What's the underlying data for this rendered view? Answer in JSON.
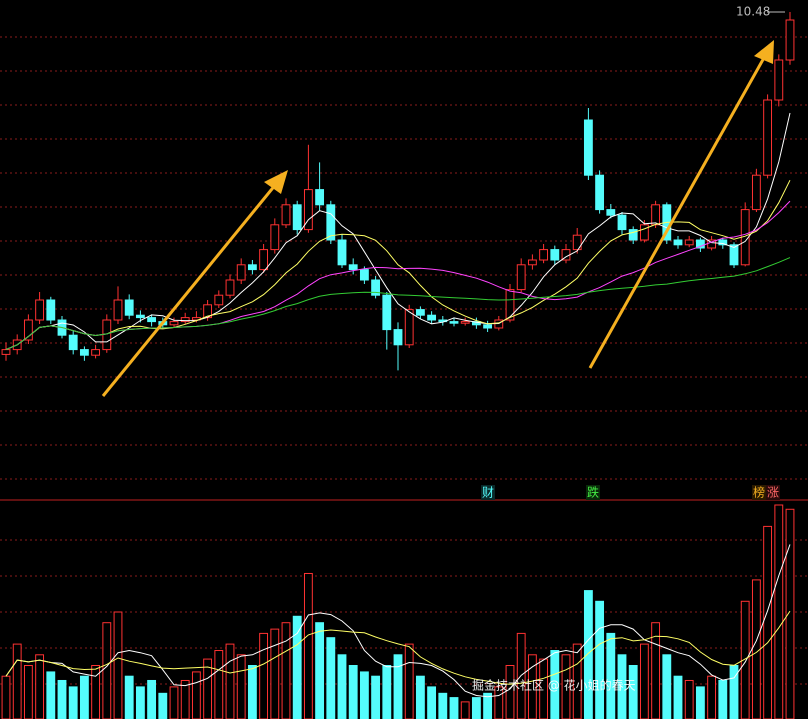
{
  "chart_data": {
    "type": "candlestick",
    "candles": [
      [
        6.2,
        6.35,
        6.12,
        6.26
      ],
      [
        6.26,
        6.45,
        6.2,
        6.38
      ],
      [
        6.38,
        6.7,
        6.33,
        6.63
      ],
      [
        6.63,
        6.98,
        6.58,
        6.88
      ],
      [
        6.88,
        6.92,
        6.58,
        6.63
      ],
      [
        6.63,
        6.68,
        6.4,
        6.44
      ],
      [
        6.44,
        6.5,
        6.2,
        6.26
      ],
      [
        6.26,
        6.3,
        6.12,
        6.19
      ],
      [
        6.19,
        6.32,
        6.15,
        6.26
      ],
      [
        6.26,
        6.7,
        6.22,
        6.63
      ],
      [
        6.63,
        7.05,
        6.58,
        6.88
      ],
      [
        6.88,
        6.95,
        6.64,
        6.69
      ],
      [
        6.69,
        6.75,
        6.6,
        6.66
      ],
      [
        6.66,
        6.7,
        6.55,
        6.61
      ],
      [
        6.61,
        6.66,
        6.52,
        6.57
      ],
      [
        6.57,
        6.66,
        6.53,
        6.61
      ],
      [
        6.61,
        6.72,
        6.58,
        6.66
      ],
      [
        6.63,
        6.74,
        6.6,
        6.66
      ],
      [
        6.66,
        6.88,
        6.62,
        6.82
      ],
      [
        6.82,
        7.0,
        6.78,
        6.94
      ],
      [
        6.94,
        7.2,
        6.9,
        7.13
      ],
      [
        7.13,
        7.4,
        7.08,
        7.32
      ],
      [
        7.32,
        7.38,
        7.2,
        7.26
      ],
      [
        7.26,
        7.58,
        7.22,
        7.51
      ],
      [
        7.51,
        7.9,
        7.46,
        7.82
      ],
      [
        7.82,
        8.15,
        7.78,
        8.07
      ],
      [
        8.07,
        8.12,
        7.7,
        7.76
      ],
      [
        7.76,
        8.82,
        7.72,
        8.26
      ],
      [
        8.26,
        8.6,
        8.0,
        8.07
      ],
      [
        8.07,
        8.12,
        7.58,
        7.63
      ],
      [
        7.63,
        7.7,
        7.28,
        7.32
      ],
      [
        7.32,
        7.4,
        7.2,
        7.26
      ],
      [
        7.26,
        7.3,
        7.08,
        7.13
      ],
      [
        7.13,
        7.18,
        6.9,
        6.94
      ],
      [
        6.94,
        6.98,
        6.26,
        6.51
      ],
      [
        6.51,
        6.6,
        6.0,
        6.32
      ],
      [
        6.32,
        6.82,
        6.28,
        6.76
      ],
      [
        6.76,
        6.8,
        6.64,
        6.69
      ],
      [
        6.69,
        6.74,
        6.58,
        6.63
      ],
      [
        6.63,
        6.68,
        6.56,
        6.61
      ],
      [
        6.61,
        6.66,
        6.55,
        6.59
      ],
      [
        6.59,
        6.66,
        6.56,
        6.61
      ],
      [
        6.61,
        6.66,
        6.52,
        6.57
      ],
      [
        6.57,
        6.62,
        6.48,
        6.53
      ],
      [
        6.53,
        6.68,
        6.5,
        6.63
      ],
      [
        6.63,
        7.08,
        6.6,
        7.01
      ],
      [
        7.01,
        7.4,
        6.98,
        7.32
      ],
      [
        7.32,
        7.45,
        7.26,
        7.38
      ],
      [
        7.38,
        7.58,
        7.34,
        7.51
      ],
      [
        7.51,
        7.56,
        7.32,
        7.38
      ],
      [
        7.38,
        7.58,
        7.34,
        7.51
      ],
      [
        7.51,
        7.78,
        7.46,
        7.69
      ],
      [
        9.13,
        9.28,
        8.38,
        8.44
      ],
      [
        8.44,
        8.5,
        7.96,
        8.01
      ],
      [
        8.01,
        8.08,
        7.9,
        7.94
      ],
      [
        7.94,
        7.98,
        7.7,
        7.76
      ],
      [
        7.76,
        7.8,
        7.58,
        7.63
      ],
      [
        7.63,
        7.88,
        7.6,
        7.82
      ],
      [
        7.82,
        8.12,
        7.78,
        8.07
      ],
      [
        8.07,
        8.1,
        7.58,
        7.63
      ],
      [
        7.63,
        7.68,
        7.52,
        7.57
      ],
      [
        7.57,
        7.68,
        7.54,
        7.63
      ],
      [
        7.63,
        7.66,
        7.48,
        7.53
      ],
      [
        7.53,
        7.68,
        7.5,
        7.63
      ],
      [
        7.63,
        7.66,
        7.52,
        7.57
      ],
      [
        7.57,
        7.6,
        7.28,
        7.32
      ],
      [
        7.32,
        8.1,
        7.3,
        8.01
      ],
      [
        8.01,
        8.52,
        7.98,
        8.44
      ],
      [
        8.44,
        9.45,
        8.4,
        9.38
      ],
      [
        9.38,
        9.95,
        9.3,
        9.88
      ],
      [
        9.88,
        10.48,
        9.82,
        10.38
      ]
    ],
    "volumes": [
      20,
      35,
      25,
      30,
      22,
      18,
      15,
      20,
      25,
      45,
      50,
      20,
      15,
      18,
      12,
      15,
      18,
      22,
      28,
      32,
      35,
      30,
      25,
      40,
      42,
      45,
      48,
      68,
      45,
      38,
      30,
      25,
      22,
      20,
      25,
      30,
      35,
      20,
      15,
      12,
      10,
      8,
      10,
      12,
      15,
      25,
      40,
      30,
      28,
      32,
      30,
      35,
      60,
      55,
      40,
      30,
      25,
      35,
      45,
      30,
      20,
      18,
      15,
      20,
      18,
      25,
      55,
      65,
      90,
      100,
      98
    ],
    "ylim": [
      4.38,
      10.63
    ],
    "vol_ylim": [
      0,
      100
    ],
    "up_color": "#ff3232",
    "down_color": "#54fcfc",
    "ma": [
      {
        "period": 5,
        "color": "#ffffff"
      },
      {
        "period": 10,
        "color": "#ffff66"
      },
      {
        "period": 20,
        "color": "#ff44ff"
      },
      {
        "period": 60,
        "color": "#33cc33"
      }
    ],
    "vol_ma": [
      {
        "period": 5,
        "color": "#ffffff"
      },
      {
        "period": 10,
        "color": "#ffff66"
      }
    ],
    "signals": [
      "财",
      "跌",
      "榜",
      "涨"
    ],
    "watermark": "掘金技术社区 @ 花小姐的春天"
  }
}
